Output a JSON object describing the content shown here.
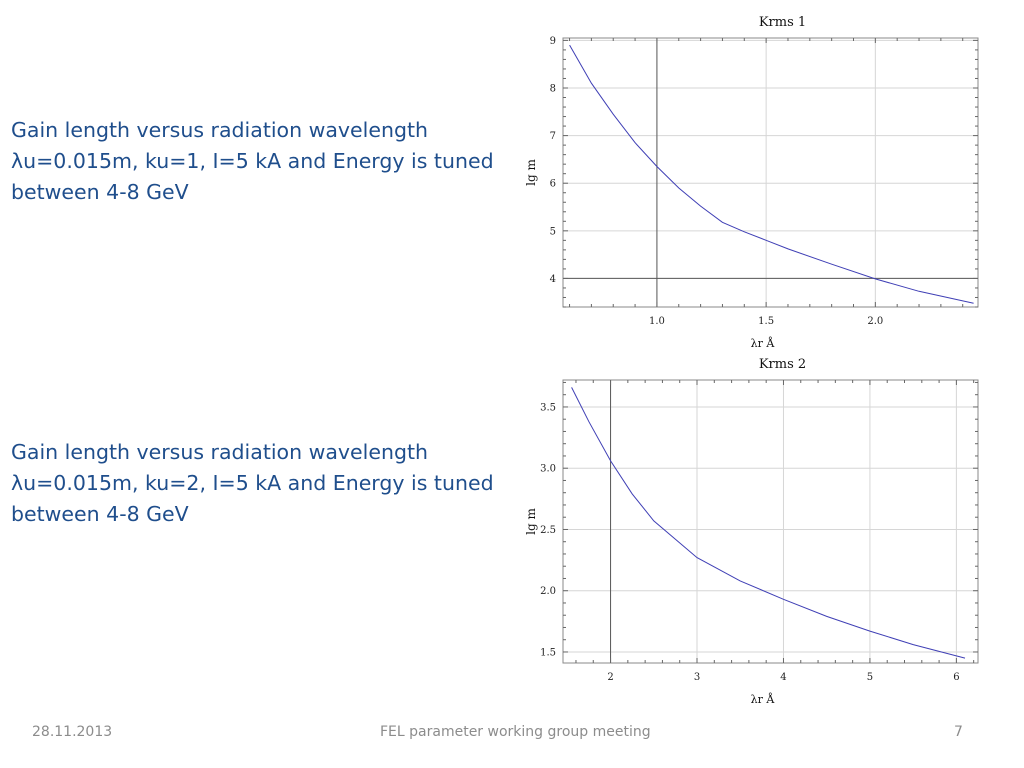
{
  "slide": {
    "description_1": [
      "Gain length versus radiation wavelength",
      "λu=0.015m, ku=1, I=5 kA and Energy is tuned",
      "between 4-8 GeV"
    ],
    "description_2": [
      "Gain length versus radiation wavelength",
      "λu=0.015m, ku=2, I=5 kA and Energy is tuned",
      "between 4-8 GeV"
    ],
    "footer": {
      "date": "28.11.2013",
      "title": "FEL parameter working group meeting",
      "page": "7"
    }
  },
  "chart_data": [
    {
      "type": "line",
      "title": "Krms   1",
      "xlabel": "λr  Å",
      "ylabel": "lg  m",
      "xlim": [
        0.57,
        2.47
      ],
      "ylim": [
        3.4,
        9.05
      ],
      "xticks": [
        1.0,
        1.5,
        2.0
      ],
      "xtick_labels": [
        "1.0",
        "1.5",
        "2.0"
      ],
      "yticks": [
        4,
        5,
        6,
        7,
        8,
        9
      ],
      "ytick_labels": [
        "4",
        "5",
        "6",
        "7",
        "8",
        "9"
      ],
      "grid": true,
      "reference_lines": {
        "x": 1.0,
        "y": 4.0
      },
      "series": [
        {
          "color": "#3f3fb5",
          "x": [
            0.6,
            0.7,
            0.8,
            0.9,
            1.0,
            1.1,
            1.2,
            1.3,
            1.4,
            1.5,
            1.6,
            1.8,
            2.0,
            2.2,
            2.45
          ],
          "y": [
            8.9,
            8.1,
            7.45,
            6.85,
            6.35,
            5.9,
            5.52,
            5.18,
            4.98,
            4.8,
            4.62,
            4.3,
            3.99,
            3.73,
            3.48
          ]
        }
      ]
    },
    {
      "type": "line",
      "title": "Krms   2",
      "xlabel": "λr  Å",
      "ylabel": "lg  m",
      "xlim": [
        1.45,
        6.25
      ],
      "ylim": [
        1.41,
        3.72
      ],
      "xticks": [
        2,
        3,
        4,
        5,
        6
      ],
      "xtick_labels": [
        "2",
        "3",
        "4",
        "5",
        "6"
      ],
      "yticks": [
        1.5,
        2.0,
        2.5,
        3.0,
        3.5
      ],
      "ytick_labels": [
        "1.5",
        "2.0",
        "2.5",
        "3.0",
        "3.5"
      ],
      "grid": true,
      "reference_lines": {
        "x": 2.0
      },
      "series": [
        {
          "color": "#3f3fb5",
          "x": [
            1.55,
            1.75,
            2.0,
            2.25,
            2.5,
            3.0,
            3.5,
            4.0,
            4.5,
            5.0,
            5.5,
            6.1
          ],
          "y": [
            3.66,
            3.38,
            3.06,
            2.79,
            2.57,
            2.27,
            2.08,
            1.93,
            1.79,
            1.67,
            1.56,
            1.45
          ]
        }
      ]
    }
  ]
}
